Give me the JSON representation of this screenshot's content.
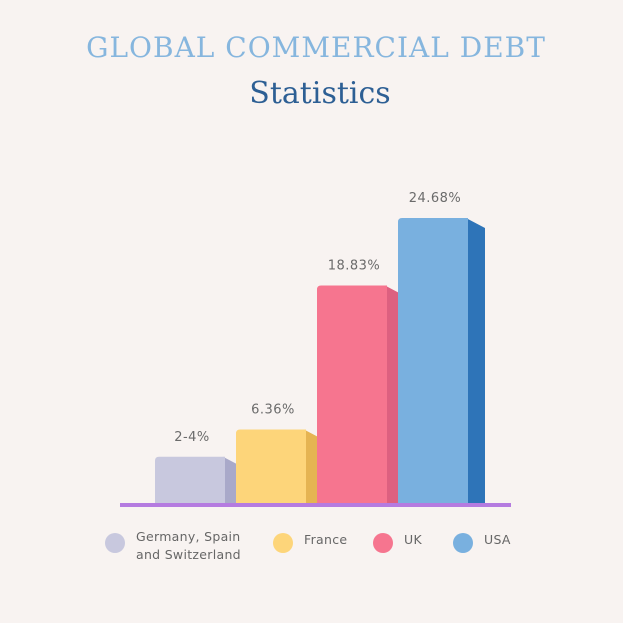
{
  "chart_data": {
    "type": "bar",
    "title": "GLOBAL COMMERCIAL DEBT",
    "subtitle": "Statistics",
    "categories": [
      "Germany, Spain and Switzerland",
      "France",
      "UK",
      "USA"
    ],
    "values": [
      [
        2,
        4
      ],
      6.36,
      18.83,
      24.68
    ],
    "value_labels": [
      "2-4%",
      "6.36%",
      "18.83%",
      "24.68%"
    ],
    "colors": [
      "#c8c8de",
      "#fdd57a",
      "#f6758f",
      "#79b0df"
    ],
    "shade_colors": [
      "#a9a9c9",
      "#e5b452",
      "#dd6080",
      "#2e74b8"
    ],
    "axis_color": "#b57be0"
  }
}
